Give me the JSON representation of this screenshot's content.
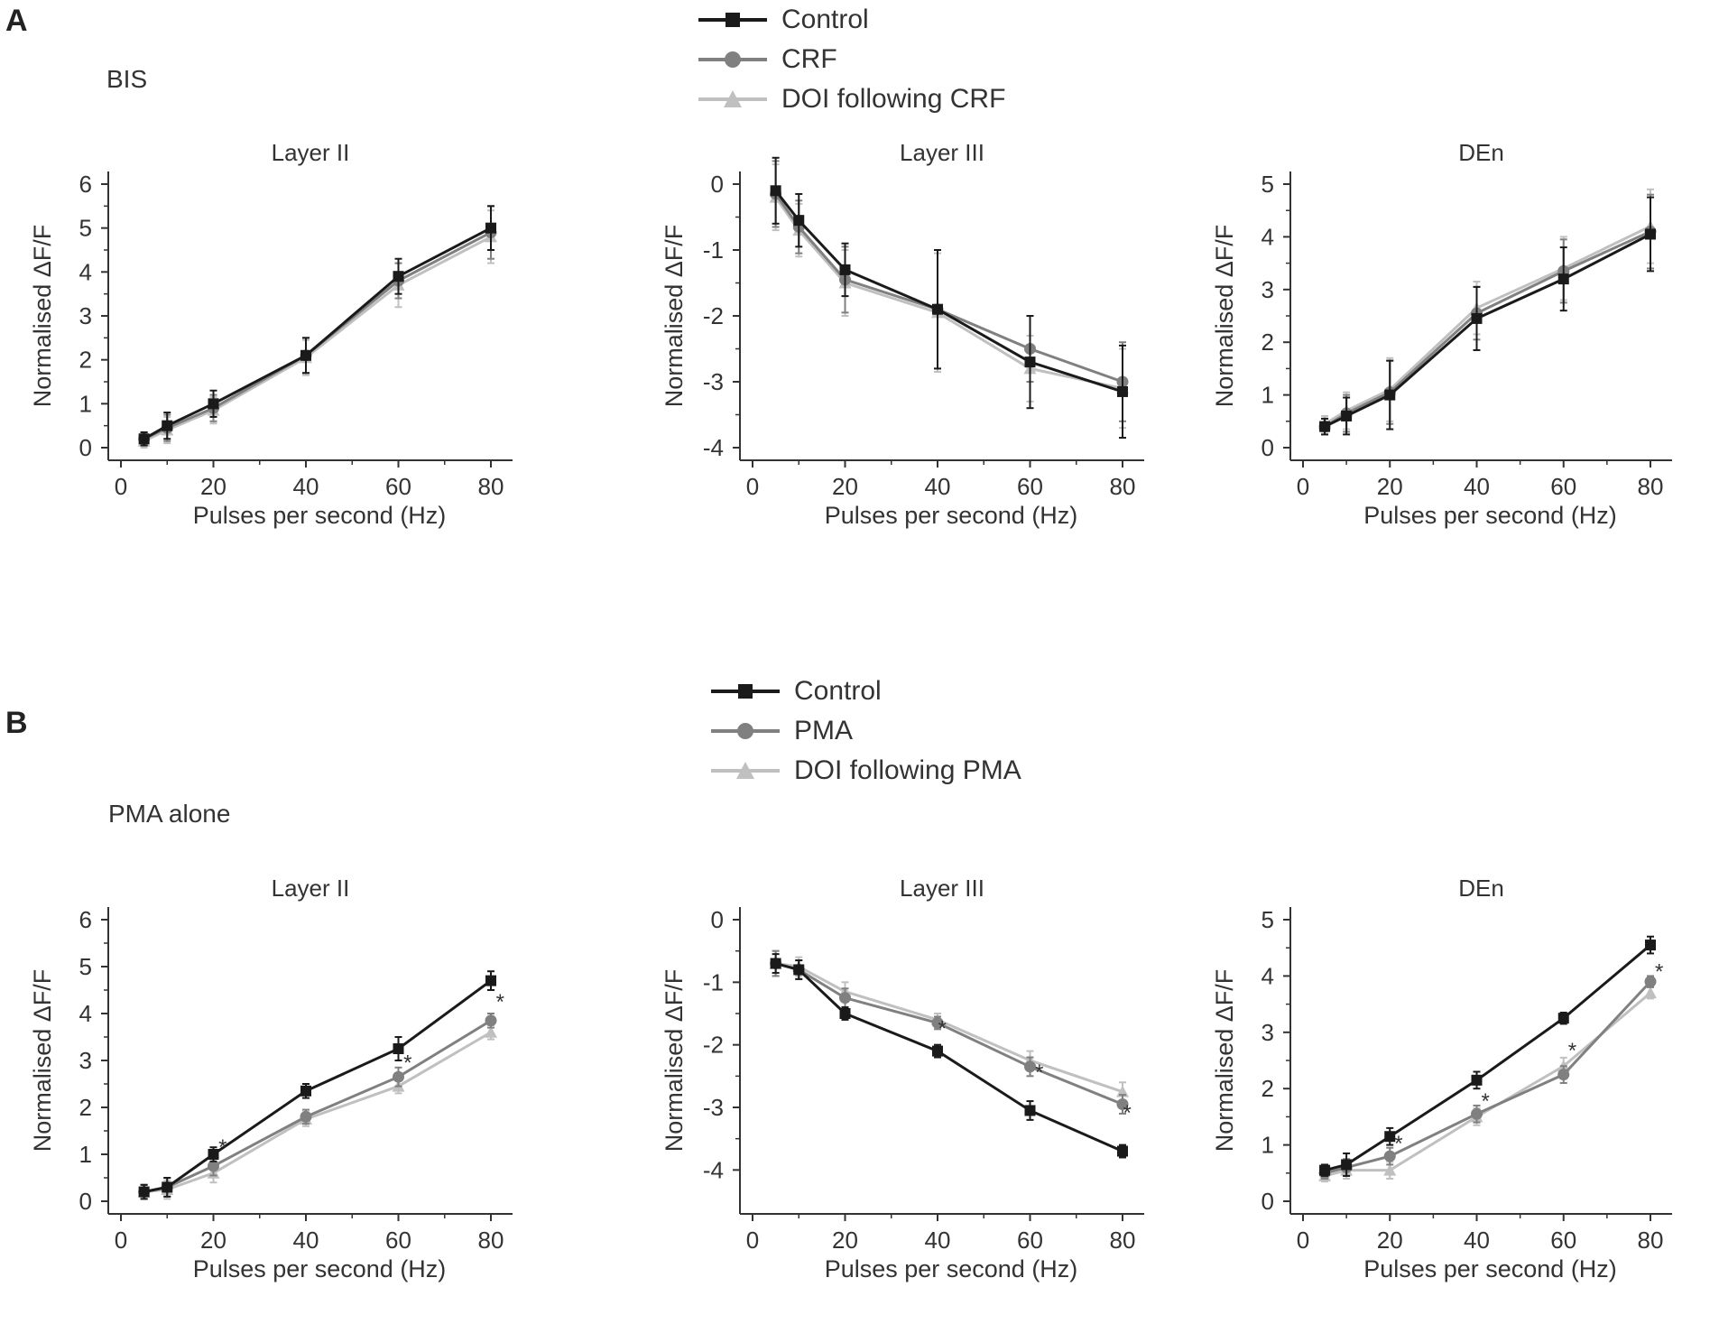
{
  "panels": [
    {
      "letter": "A",
      "condition_label": "BIS",
      "legend": [
        {
          "name": "Control",
          "color": "#1a1a1a",
          "marker": "square"
        },
        {
          "name": "CRF",
          "color": "#808080",
          "marker": "circle"
        },
        {
          "name": "DOI following CRF",
          "color": "#c0c0c0",
          "marker": "triangle"
        }
      ]
    },
    {
      "letter": "B",
      "condition_label": "PMA alone",
      "legend": [
        {
          "name": "Control",
          "color": "#1a1a1a",
          "marker": "square"
        },
        {
          "name": "PMA",
          "color": "#808080",
          "marker": "circle"
        },
        {
          "name": "DOI following PMA",
          "color": "#c0c0c0",
          "marker": "triangle"
        }
      ]
    }
  ],
  "chart_data": [
    {
      "panel": "A",
      "type": "line",
      "title": "Layer II",
      "xlabel": "Pulses per second (Hz)",
      "ylabel": "Normalised ΔF/F",
      "xlim": [
        0,
        80
      ],
      "ylim": [
        0,
        6
      ],
      "xticks": [
        "0",
        "20",
        "40",
        "60",
        "80"
      ],
      "yticks": [
        "0",
        "1",
        "2",
        "3",
        "4",
        "5",
        "6"
      ],
      "x": [
        5,
        10,
        20,
        40,
        60,
        80
      ],
      "series": [
        {
          "name": "Control",
          "values": [
            0.2,
            0.5,
            1.0,
            2.1,
            3.9,
            5.0
          ],
          "err": [
            0.15,
            0.3,
            0.3,
            0.4,
            0.4,
            0.5
          ]
        },
        {
          "name": "CRF",
          "values": [
            0.2,
            0.45,
            0.9,
            2.1,
            3.8,
            4.9
          ],
          "err": [
            0.15,
            0.3,
            0.3,
            0.4,
            0.4,
            0.6
          ]
        },
        {
          "name": "DOI following CRF",
          "values": [
            0.15,
            0.4,
            0.85,
            2.05,
            3.7,
            4.8
          ],
          "err": [
            0.15,
            0.3,
            0.3,
            0.4,
            0.5,
            0.6
          ]
        }
      ],
      "annotations": []
    },
    {
      "panel": "A",
      "type": "line",
      "title": "Layer III",
      "xlabel": "Pulses per second (Hz)",
      "ylabel": "Normalised ΔF/F",
      "xlim": [
        0,
        80
      ],
      "ylim": [
        -4,
        0
      ],
      "xticks": [
        "0",
        "20",
        "40",
        "60",
        "80"
      ],
      "yticks": [
        "0",
        "-1",
        "-2",
        "-3",
        "-4"
      ],
      "x": [
        5,
        10,
        20,
        40,
        60,
        80
      ],
      "series": [
        {
          "name": "Control",
          "values": [
            -0.1,
            -0.55,
            -1.3,
            -1.9,
            -2.7,
            -3.15
          ],
          "err": [
            0.5,
            0.4,
            0.4,
            0.9,
            0.7,
            0.7
          ]
        },
        {
          "name": "CRF",
          "values": [
            -0.15,
            -0.65,
            -1.45,
            -1.9,
            -2.5,
            -3.0
          ],
          "err": [
            0.5,
            0.4,
            0.5,
            0.9,
            0.5,
            0.6
          ]
        },
        {
          "name": "DOI following CRF",
          "values": [
            -0.2,
            -0.7,
            -1.5,
            -1.95,
            -2.8,
            -3.1
          ],
          "err": [
            0.5,
            0.4,
            0.5,
            0.9,
            0.5,
            0.6
          ]
        }
      ],
      "annotations": []
    },
    {
      "panel": "A",
      "type": "line",
      "title": "DEn",
      "xlabel": "Pulses per second (Hz)",
      "ylabel": "Normalised ΔF/F",
      "xlim": [
        0,
        80
      ],
      "ylim": [
        0,
        5
      ],
      "xticks": [
        "0",
        "20",
        "40",
        "60",
        "80"
      ],
      "yticks": [
        "0",
        "1",
        "2",
        "3",
        "4",
        "5"
      ],
      "x": [
        5,
        10,
        20,
        40,
        60,
        80
      ],
      "series": [
        {
          "name": "Control",
          "values": [
            0.4,
            0.6,
            1.0,
            2.45,
            3.2,
            4.05
          ],
          "err": [
            0.15,
            0.35,
            0.65,
            0.6,
            0.6,
            0.7
          ]
        },
        {
          "name": "CRF",
          "values": [
            0.4,
            0.65,
            1.05,
            2.55,
            3.35,
            4.1
          ],
          "err": [
            0.15,
            0.35,
            0.6,
            0.5,
            0.6,
            0.7
          ]
        },
        {
          "name": "DOI following CRF",
          "values": [
            0.45,
            0.7,
            1.1,
            2.65,
            3.4,
            4.2
          ],
          "err": [
            0.15,
            0.35,
            0.6,
            0.5,
            0.6,
            0.7
          ]
        }
      ],
      "annotations": []
    },
    {
      "panel": "B",
      "type": "line",
      "title": "Layer II",
      "xlabel": "Pulses per second (Hz)",
      "ylabel": "Normalised ΔF/F",
      "xlim": [
        0,
        80
      ],
      "ylim": [
        0,
        6
      ],
      "xticks": [
        "0",
        "20",
        "40",
        "60",
        "80"
      ],
      "yticks": [
        "0",
        "1",
        "2",
        "3",
        "4",
        "5",
        "6"
      ],
      "x": [
        5,
        10,
        20,
        40,
        60,
        80
      ],
      "series": [
        {
          "name": "Control",
          "values": [
            0.2,
            0.3,
            1.0,
            2.35,
            3.25,
            4.7
          ],
          "err": [
            0.15,
            0.2,
            0.15,
            0.15,
            0.25,
            0.2
          ]
        },
        {
          "name": "PMA",
          "values": [
            0.2,
            0.3,
            0.75,
            1.8,
            2.65,
            3.85
          ],
          "err": [
            0.15,
            0.2,
            0.2,
            0.15,
            0.2,
            0.15
          ]
        },
        {
          "name": "DOI following PMA",
          "values": [
            0.2,
            0.25,
            0.6,
            1.75,
            2.45,
            3.6
          ],
          "err": [
            0.15,
            0.2,
            0.2,
            0.15,
            0.15,
            0.15
          ]
        }
      ],
      "annotations": [
        {
          "text": "*",
          "x": 22,
          "y": 1.0
        },
        {
          "text": "*",
          "x": 62,
          "y": 2.8
        },
        {
          "text": "*",
          "x": 82,
          "y": 4.1
        }
      ]
    },
    {
      "panel": "B",
      "type": "line",
      "title": "Layer III",
      "xlabel": "Pulses per second (Hz)",
      "ylabel": "Normalised ΔF/F",
      "xlim": [
        0,
        80
      ],
      "ylim": [
        -4.5,
        0
      ],
      "xticks": [
        "0",
        "20",
        "40",
        "60",
        "80"
      ],
      "yticks": [
        "0",
        "-1",
        "-2",
        "-3",
        "-4"
      ],
      "x": [
        5,
        10,
        20,
        40,
        60,
        80
      ],
      "series": [
        {
          "name": "Control",
          "values": [
            -0.7,
            -0.8,
            -1.5,
            -2.1,
            -3.05,
            -3.7
          ],
          "err": [
            0.15,
            0.15,
            0.1,
            0.1,
            0.15,
            0.1
          ]
        },
        {
          "name": "PMA",
          "values": [
            -0.7,
            -0.8,
            -1.25,
            -1.65,
            -2.35,
            -2.95
          ],
          "err": [
            0.2,
            0.15,
            0.15,
            0.1,
            0.15,
            0.15
          ]
        },
        {
          "name": "DOI following PMA",
          "values": [
            -0.7,
            -0.75,
            -1.15,
            -1.6,
            -2.25,
            -2.75
          ],
          "err": [
            0.2,
            0.15,
            0.15,
            0.1,
            0.15,
            0.15
          ]
        }
      ],
      "annotations": [
        {
          "text": "*",
          "x": 41,
          "y": -1.85
        },
        {
          "text": "*",
          "x": 62,
          "y": -2.55
        },
        {
          "text": "*",
          "x": 81,
          "y": -3.2
        }
      ]
    },
    {
      "panel": "B",
      "type": "line",
      "title": "DEn",
      "xlabel": "Pulses per second (Hz)",
      "ylabel": "Normalised ΔF/F",
      "xlim": [
        0,
        80
      ],
      "ylim": [
        0,
        5
      ],
      "xticks": [
        "0",
        "20",
        "40",
        "60",
        "80"
      ],
      "yticks": [
        "0",
        "1",
        "2",
        "3",
        "4",
        "5"
      ],
      "x": [
        5,
        10,
        20,
        40,
        60,
        80
      ],
      "series": [
        {
          "name": "Control",
          "values": [
            0.55,
            0.65,
            1.15,
            2.15,
            3.25,
            4.55
          ],
          "err": [
            0.1,
            0.2,
            0.15,
            0.15,
            0.1,
            0.15
          ]
        },
        {
          "name": "PMA",
          "values": [
            0.5,
            0.6,
            0.8,
            1.55,
            2.25,
            3.9
          ],
          "err": [
            0.1,
            0.15,
            0.15,
            0.15,
            0.15,
            0.1
          ]
        },
        {
          "name": "DOI following PMA",
          "values": [
            0.45,
            0.55,
            0.55,
            1.5,
            2.4,
            3.7
          ],
          "err": [
            0.1,
            0.15,
            0.15,
            0.15,
            0.15,
            0.1
          ]
        }
      ],
      "annotations": [
        {
          "text": "*",
          "x": 22,
          "y": 0.9
        },
        {
          "text": "*",
          "x": 42,
          "y": 1.65
        },
        {
          "text": "*",
          "x": 62,
          "y": 2.55
        },
        {
          "text": "*",
          "x": 82,
          "y": 3.95
        }
      ]
    }
  ]
}
